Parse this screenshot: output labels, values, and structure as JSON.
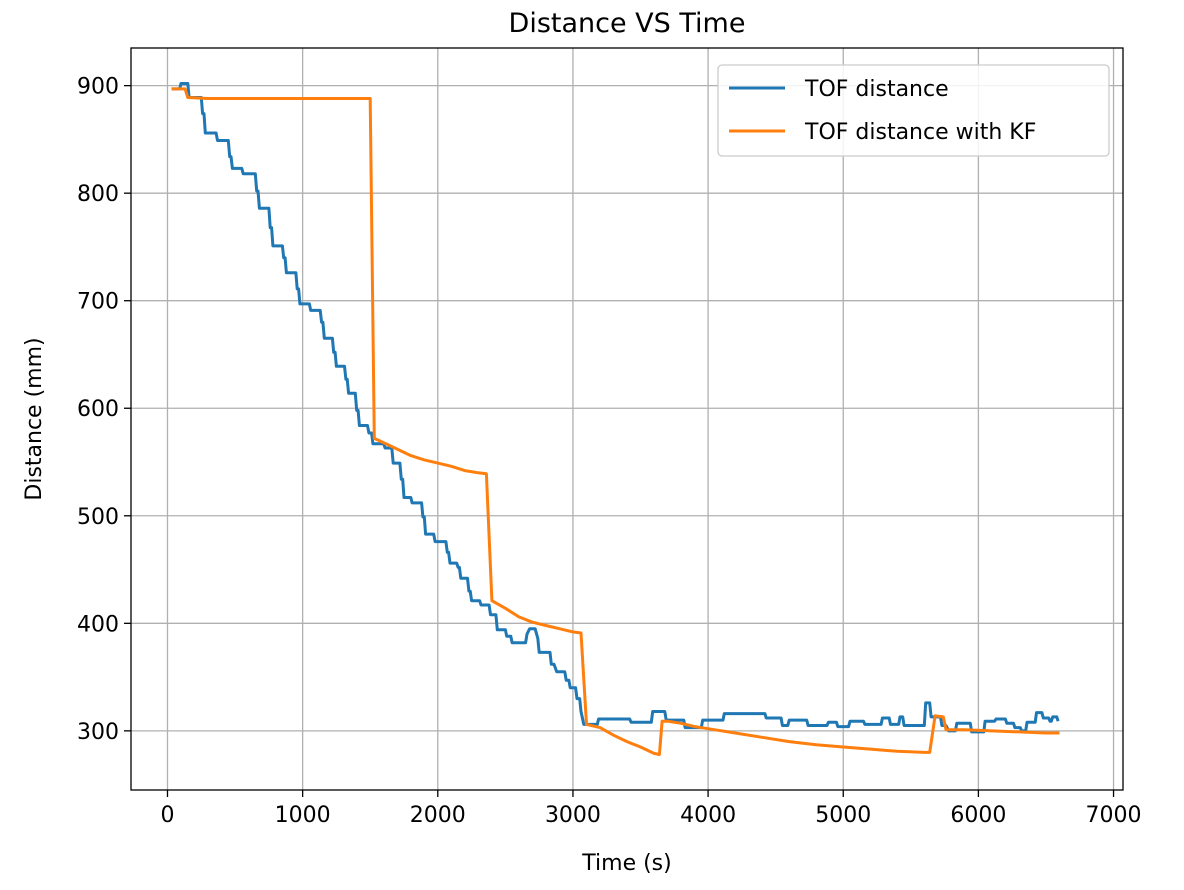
{
  "chart_data": {
    "type": "line",
    "title": "Distance VS Time",
    "xlabel": "Time (s)",
    "ylabel": "Distance (mm)",
    "xlim": [
      -270,
      7070
    ],
    "ylim": [
      245,
      935
    ],
    "xticks": [
      0,
      1000,
      2000,
      3000,
      4000,
      5000,
      6000,
      7000
    ],
    "yticks": [
      300,
      400,
      500,
      600,
      700,
      800,
      900
    ],
    "grid": true,
    "legend_position": "top-right",
    "series": [
      {
        "name": "TOF distance",
        "color": "#1f77b4",
        "points": [
          [
            30,
            897
          ],
          [
            90,
            897
          ],
          [
            100,
            902
          ],
          [
            150,
            902
          ],
          [
            160,
            889
          ],
          [
            250,
            889
          ],
          [
            260,
            874
          ],
          [
            270,
            874
          ],
          [
            280,
            856
          ],
          [
            360,
            856
          ],
          [
            370,
            849
          ],
          [
            450,
            849
          ],
          [
            460,
            834
          ],
          [
            470,
            834
          ],
          [
            480,
            823
          ],
          [
            550,
            823
          ],
          [
            560,
            818
          ],
          [
            650,
            818
          ],
          [
            660,
            802
          ],
          [
            670,
            802
          ],
          [
            680,
            786
          ],
          [
            750,
            786
          ],
          [
            760,
            768
          ],
          [
            770,
            768
          ],
          [
            780,
            751
          ],
          [
            850,
            751
          ],
          [
            860,
            740
          ],
          [
            870,
            740
          ],
          [
            880,
            726
          ],
          [
            950,
            726
          ],
          [
            960,
            711
          ],
          [
            970,
            711
          ],
          [
            980,
            697
          ],
          [
            1050,
            697
          ],
          [
            1060,
            691
          ],
          [
            1130,
            691
          ],
          [
            1140,
            680
          ],
          [
            1150,
            680
          ],
          [
            1160,
            665
          ],
          [
            1220,
            665
          ],
          [
            1230,
            652
          ],
          [
            1240,
            652
          ],
          [
            1250,
            639
          ],
          [
            1310,
            639
          ],
          [
            1320,
            627
          ],
          [
            1330,
            627
          ],
          [
            1340,
            614
          ],
          [
            1390,
            614
          ],
          [
            1400,
            598
          ],
          [
            1410,
            598
          ],
          [
            1420,
            584
          ],
          [
            1480,
            584
          ],
          [
            1490,
            577
          ],
          [
            1510,
            577
          ],
          [
            1520,
            567
          ],
          [
            1600,
            567
          ],
          [
            1610,
            563
          ],
          [
            1660,
            563
          ],
          [
            1670,
            549
          ],
          [
            1720,
            549
          ],
          [
            1730,
            534
          ],
          [
            1740,
            534
          ],
          [
            1750,
            517
          ],
          [
            1800,
            517
          ],
          [
            1810,
            512
          ],
          [
            1880,
            512
          ],
          [
            1890,
            499
          ],
          [
            1900,
            499
          ],
          [
            1910,
            483
          ],
          [
            1970,
            483
          ],
          [
            1980,
            476
          ],
          [
            2060,
            476
          ],
          [
            2070,
            466
          ],
          [
            2080,
            466
          ],
          [
            2090,
            456
          ],
          [
            2140,
            456
          ],
          [
            2150,
            452
          ],
          [
            2160,
            452
          ],
          [
            2170,
            442
          ],
          [
            2220,
            442
          ],
          [
            2230,
            430
          ],
          [
            2240,
            430
          ],
          [
            2250,
            421
          ],
          [
            2310,
            421
          ],
          [
            2320,
            417
          ],
          [
            2380,
            417
          ],
          [
            2390,
            408
          ],
          [
            2430,
            408
          ],
          [
            2440,
            394
          ],
          [
            2500,
            394
          ],
          [
            2510,
            388
          ],
          [
            2540,
            388
          ],
          [
            2550,
            382
          ],
          [
            2650,
            382
          ],
          [
            2660,
            390
          ],
          [
            2680,
            395
          ],
          [
            2720,
            395
          ],
          [
            2740,
            386
          ],
          [
            2750,
            373
          ],
          [
            2830,
            373
          ],
          [
            2840,
            362
          ],
          [
            2860,
            362
          ],
          [
            2880,
            355
          ],
          [
            2940,
            355
          ],
          [
            2950,
            347
          ],
          [
            2970,
            347
          ],
          [
            2980,
            340
          ],
          [
            3020,
            340
          ],
          [
            3030,
            330
          ],
          [
            3050,
            330
          ],
          [
            3060,
            318
          ],
          [
            3080,
            306
          ],
          [
            3180,
            306
          ],
          [
            3190,
            311
          ],
          [
            3260,
            311
          ],
          [
            3420,
            311
          ],
          [
            3430,
            308
          ],
          [
            3580,
            308
          ],
          [
            3590,
            318
          ],
          [
            3680,
            318
          ],
          [
            3690,
            310
          ],
          [
            3820,
            310
          ],
          [
            3830,
            303
          ],
          [
            3950,
            303
          ],
          [
            3960,
            310
          ],
          [
            4110,
            310
          ],
          [
            4120,
            316
          ],
          [
            4200,
            316
          ],
          [
            4420,
            316
          ],
          [
            4430,
            312
          ],
          [
            4540,
            312
          ],
          [
            4550,
            305
          ],
          [
            4590,
            305
          ],
          [
            4600,
            310
          ],
          [
            4730,
            310
          ],
          [
            4740,
            305
          ],
          [
            4880,
            305
          ],
          [
            4890,
            308
          ],
          [
            4950,
            308
          ],
          [
            4960,
            304
          ],
          [
            5040,
            304
          ],
          [
            5050,
            309
          ],
          [
            5150,
            309
          ],
          [
            5160,
            306
          ],
          [
            5280,
            306
          ],
          [
            5290,
            312
          ],
          [
            5340,
            312
          ],
          [
            5350,
            306
          ],
          [
            5410,
            306
          ],
          [
            5420,
            313
          ],
          [
            5440,
            313
          ],
          [
            5450,
            305
          ],
          [
            5600,
            305
          ],
          [
            5610,
            326
          ],
          [
            5640,
            326
          ],
          [
            5650,
            313
          ],
          [
            5680,
            313
          ],
          [
            5720,
            313
          ],
          [
            5730,
            305
          ],
          [
            5760,
            305
          ],
          [
            5780,
            300
          ],
          [
            5830,
            300
          ],
          [
            5840,
            307
          ],
          [
            5940,
            307
          ],
          [
            5950,
            299
          ],
          [
            6040,
            299
          ],
          [
            6050,
            309
          ],
          [
            6120,
            309
          ],
          [
            6130,
            311
          ],
          [
            6200,
            311
          ],
          [
            6210,
            307
          ],
          [
            6260,
            307
          ],
          [
            6270,
            303
          ],
          [
            6310,
            303
          ],
          [
            6320,
            300
          ],
          [
            6350,
            300
          ],
          [
            6360,
            308
          ],
          [
            6420,
            308
          ],
          [
            6430,
            317
          ],
          [
            6470,
            317
          ],
          [
            6480,
            312
          ],
          [
            6520,
            312
          ],
          [
            6530,
            309
          ],
          [
            6540,
            309
          ],
          [
            6550,
            313
          ],
          [
            6580,
            313
          ],
          [
            6590,
            309
          ]
        ]
      },
      {
        "name": "TOF distance with KF",
        "color": "#ff7f0e",
        "points": [
          [
            30,
            897
          ],
          [
            110,
            897
          ],
          [
            130,
            897
          ],
          [
            150,
            889
          ],
          [
            300,
            888
          ],
          [
            1500,
            888
          ],
          [
            1530,
            572
          ],
          [
            1600,
            568
          ],
          [
            1700,
            562
          ],
          [
            1800,
            556
          ],
          [
            1900,
            552
          ],
          [
            2000,
            549
          ],
          [
            2100,
            546
          ],
          [
            2200,
            542
          ],
          [
            2300,
            540
          ],
          [
            2360,
            539
          ],
          [
            2400,
            421
          ],
          [
            2500,
            414
          ],
          [
            2600,
            406
          ],
          [
            2700,
            401
          ],
          [
            2800,
            398
          ],
          [
            2900,
            395
          ],
          [
            3000,
            392
          ],
          [
            3060,
            391
          ],
          [
            3100,
            306
          ],
          [
            3200,
            303
          ],
          [
            3300,
            296
          ],
          [
            3400,
            290
          ],
          [
            3500,
            285
          ],
          [
            3600,
            279
          ],
          [
            3640,
            278
          ],
          [
            3660,
            309
          ],
          [
            3700,
            309
          ],
          [
            3800,
            307
          ],
          [
            3900,
            304
          ],
          [
            4000,
            302
          ],
          [
            4200,
            298
          ],
          [
            4400,
            294
          ],
          [
            4600,
            290
          ],
          [
            4800,
            287
          ],
          [
            5000,
            285
          ],
          [
            5200,
            283
          ],
          [
            5400,
            281
          ],
          [
            5600,
            280
          ],
          [
            5640,
            280
          ],
          [
            5680,
            314
          ],
          [
            5740,
            313
          ],
          [
            5760,
            301
          ],
          [
            5900,
            301
          ],
          [
            6100,
            300
          ],
          [
            6300,
            299
          ],
          [
            6500,
            298
          ],
          [
            6600,
            298
          ]
        ]
      }
    ]
  }
}
